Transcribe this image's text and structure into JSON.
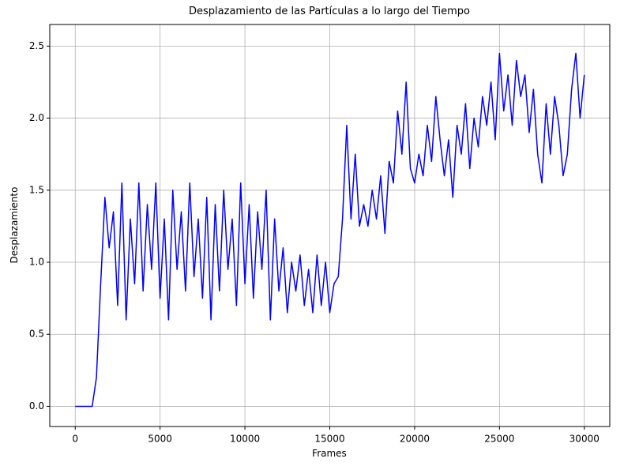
{
  "chart_data": {
    "type": "line",
    "title": "Desplazamiento de las Partículas a lo largo del Tiempo",
    "x_label": "Frames",
    "y_label": "Desplazamiento",
    "x": [
      0,
      250,
      500,
      750,
      1000,
      1250,
      1500,
      1750,
      2000,
      2250,
      2500,
      2750,
      3000,
      3250,
      3500,
      3750,
      4000,
      4250,
      4500,
      4750,
      5000,
      5250,
      5500,
      5750,
      6000,
      6250,
      6500,
      6750,
      7000,
      7250,
      7500,
      7750,
      8000,
      8250,
      8500,
      8750,
      9000,
      9250,
      9500,
      9750,
      10000,
      10250,
      10500,
      10750,
      11000,
      11250,
      11500,
      11750,
      12000,
      12250,
      12500,
      12750,
      13000,
      13250,
      13500,
      13750,
      14000,
      14250,
      14500,
      14750,
      15000,
      15250,
      15500,
      15750,
      16000,
      16250,
      16500,
      16750,
      17000,
      17250,
      17500,
      17750,
      18000,
      18250,
      18500,
      18750,
      19000,
      19250,
      19500,
      19750,
      20000,
      20250,
      20500,
      20750,
      21000,
      21250,
      21500,
      21750,
      22000,
      22250,
      22500,
      22750,
      23000,
      23250,
      23500,
      23750,
      24000,
      24250,
      24500,
      24750,
      25000,
      25250,
      25500,
      25750,
      26000,
      26250,
      26500,
      26750,
      27000,
      27250,
      27500,
      27750,
      28000,
      28250,
      28500,
      28750,
      29000,
      29250,
      29500,
      29750,
      30000
    ],
    "series": [
      {
        "color": "#0000ff",
        "values": [
          0,
          0,
          0,
          0,
          0,
          0.2,
          0.85,
          1.45,
          1.1,
          1.35,
          0.7,
          1.55,
          0.6,
          1.3,
          0.85,
          1.55,
          0.8,
          1.4,
          0.95,
          1.55,
          0.75,
          1.3,
          0.6,
          1.5,
          0.95,
          1.35,
          0.8,
          1.55,
          0.9,
          1.3,
          0.75,
          1.45,
          0.6,
          1.4,
          0.8,
          1.5,
          0.95,
          1.3,
          0.7,
          1.55,
          0.85,
          1.4,
          0.75,
          1.35,
          0.95,
          1.5,
          0.6,
          1.3,
          0.8,
          1.1,
          0.65,
          1.0,
          0.8,
          1.05,
          0.7,
          0.95,
          0.65,
          1.05,
          0.7,
          1.0,
          0.65,
          0.85,
          0.9,
          1.3,
          1.95,
          1.3,
          1.75,
          1.25,
          1.4,
          1.25,
          1.5,
          1.3,
          1.6,
          1.2,
          1.7,
          1.55,
          2.05,
          1.75,
          2.25,
          1.65,
          1.55,
          1.75,
          1.6,
          1.95,
          1.7,
          2.15,
          1.85,
          1.6,
          1.85,
          1.45,
          1.95,
          1.75,
          2.1,
          1.65,
          2.0,
          1.8,
          2.15,
          1.95,
          2.25,
          1.85,
          2.45,
          2.05,
          2.3,
          1.95,
          2.4,
          2.15,
          2.3,
          1.9,
          2.2,
          1.75,
          1.55,
          2.1,
          1.75,
          2.15,
          1.95,
          1.6,
          1.75,
          2.2,
          2.45,
          2.0,
          2.3
        ]
      }
    ],
    "xlim": [
      -1500,
      31500
    ],
    "xticks": [
      0,
      5000,
      10000,
      15000,
      20000,
      25000,
      30000
    ],
    "ylim": [
      -0.14,
      2.65
    ],
    "yticks": [
      {
        "value": 0,
        "label": "0.0"
      },
      0.5,
      {
        "value": 1,
        "label": "1.0"
      },
      1.5,
      {
        "value": 2,
        "label": "2.0"
      },
      2.5
    ],
    "grid": true
  }
}
